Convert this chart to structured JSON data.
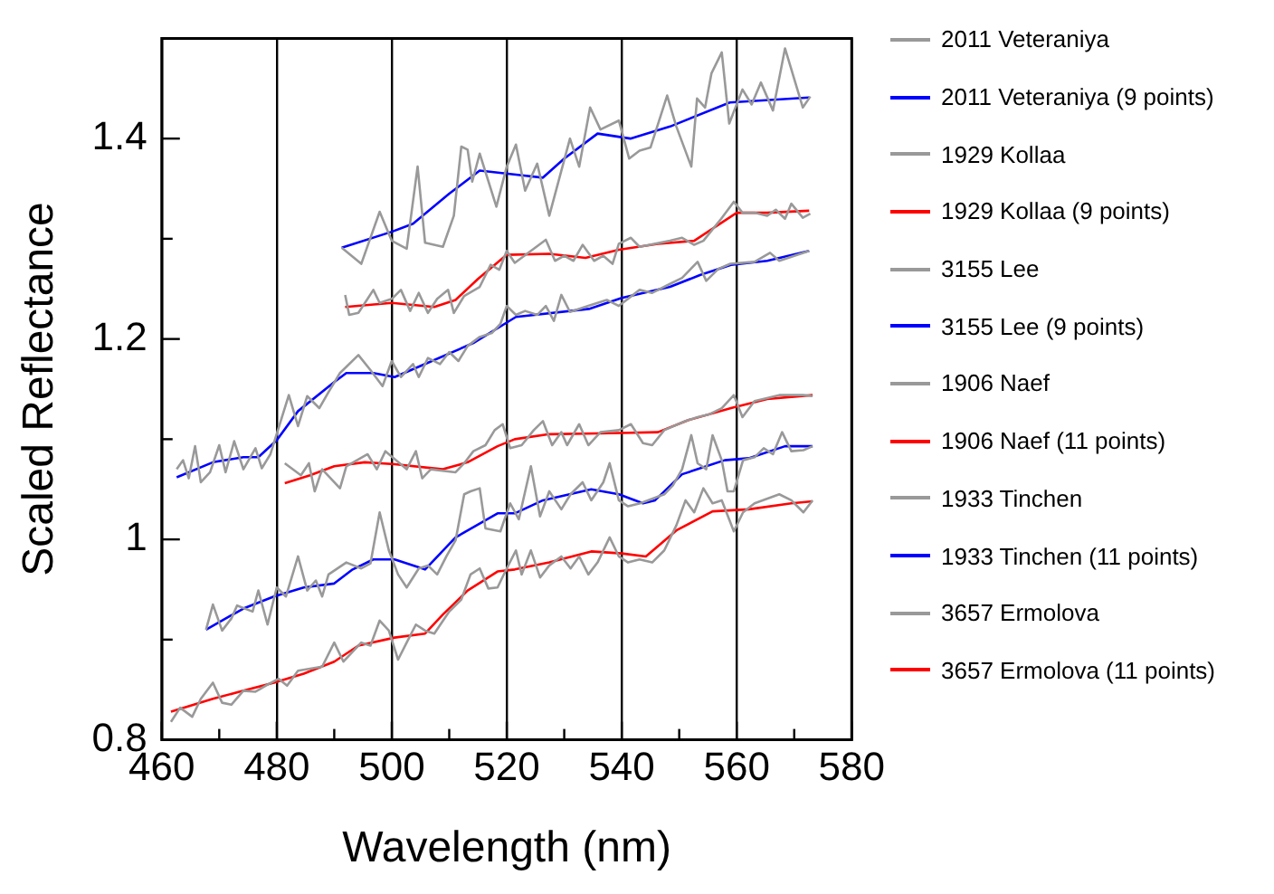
{
  "chart_data": {
    "type": "line",
    "xlabel": "Wavelength (nm)",
    "ylabel": "Scaled Reflectance",
    "xlim": [
      460,
      580
    ],
    "ylim": [
      0.8,
      1.5
    ],
    "xticks": [
      460,
      {
        "value": 470,
        "label": null
      },
      480,
      {
        "value": 490,
        "label": null
      },
      500,
      {
        "value": 510,
        "label": null
      },
      520,
      {
        "value": 530,
        "label": null
      },
      540,
      {
        "value": 550,
        "label": null
      },
      560,
      {
        "value": 570,
        "label": null
      },
      580
    ],
    "yticks": [
      0.8,
      {
        "value": 0.9,
        "label": null
      },
      1,
      {
        "value": 1.1,
        "label": null
      },
      1.2,
      {
        "value": 1.3,
        "label": null
      },
      1.4
    ],
    "grid": "x",
    "legend": "right",
    "marker": "none",
    "line_style": "solid",
    "series": [
      {
        "name": "2011 Veteraniya",
        "color": "#999999",
        "x": [
          491.3,
          494.7,
          497.9,
          500,
          502.6,
          504.5,
          505.8,
          508.9,
          510.8,
          512.1,
          513.2,
          514,
          515.3,
          518.2,
          520,
          521.6,
          523.2,
          525.3,
          527.4,
          531,
          532.6,
          534.5,
          536.3,
          539.5,
          541.3,
          543.1,
          545,
          547.9,
          549.5,
          552.1,
          553.1,
          554.5,
          555.6,
          557.4,
          558.7,
          561,
          562.6,
          564.2,
          566.3,
          568.4,
          571.5,
          572.8
        ],
        "values": [
          1.291,
          1.275,
          1.327,
          1.298,
          1.29,
          1.372,
          1.296,
          1.292,
          1.323,
          1.392,
          1.389,
          1.357,
          1.385,
          1.332,
          1.372,
          1.394,
          1.348,
          1.375,
          1.323,
          1.4,
          1.372,
          1.431,
          1.409,
          1.418,
          1.38,
          1.388,
          1.391,
          1.443,
          1.412,
          1.372,
          1.44,
          1.431,
          1.465,
          1.486,
          1.415,
          1.449,
          1.434,
          1.456,
          1.428,
          1.49,
          1.431,
          1.442
        ]
      },
      {
        "name": "2011 Veteraniya (9 points)",
        "color": "#0000ff",
        "x": [
          491.3,
          500,
          503.7,
          510,
          515.3,
          521.6,
          526.3,
          530,
          535.8,
          541.5,
          548.4,
          558.8,
          572.6
        ],
        "values": [
          1.291,
          1.307,
          1.315,
          1.345,
          1.368,
          1.364,
          1.361,
          1.38,
          1.405,
          1.4,
          1.412,
          1.436,
          1.441
        ]
      },
      {
        "name": "1929 Kollaa",
        "color": "#999999",
        "x": [
          491.9,
          492.6,
          494.2,
          495.8,
          496.8,
          497.9,
          500,
          501.6,
          503.2,
          504.7,
          506.3,
          507.9,
          509.8,
          510.8,
          512.6,
          515.3,
          517.2,
          518.7,
          520,
          521.4,
          526.8,
          528.4,
          530,
          531.6,
          533.2,
          535.2,
          536.8,
          538.4,
          539.5,
          541.6,
          543.1,
          548.4,
          550.5,
          552.6,
          554.2,
          557.3,
          559.5,
          561,
          563.1,
          565.3,
          566.8,
          568.4,
          569.5,
          571.5,
          572.8
        ],
        "values": [
          1.244,
          1.224,
          1.226,
          1.24,
          1.249,
          1.236,
          1.24,
          1.249,
          1.228,
          1.246,
          1.226,
          1.24,
          1.249,
          1.226,
          1.243,
          1.252,
          1.274,
          1.269,
          1.288,
          1.276,
          1.299,
          1.278,
          1.283,
          1.278,
          1.294,
          1.278,
          1.283,
          1.275,
          1.295,
          1.301,
          1.292,
          1.298,
          1.301,
          1.294,
          1.298,
          1.32,
          1.337,
          1.326,
          1.326,
          1.323,
          1.329,
          1.32,
          1.335,
          1.321,
          1.325
        ]
      },
      {
        "name": "1929 Kollaa (9 points)",
        "color": "#ff0000",
        "x": [
          491.9,
          500,
          507.4,
          511.1,
          515,
          520,
          527.4,
          533.7,
          539.5,
          546.3,
          552.6,
          560,
          565.3,
          572.6
        ],
        "values": [
          1.232,
          1.236,
          1.232,
          1.239,
          1.26,
          1.284,
          1.285,
          1.281,
          1.289,
          1.295,
          1.298,
          1.326,
          1.326,
          1.328
        ]
      },
      {
        "name": "3155 Lee",
        "color": "#999999",
        "x": [
          462.6,
          463.7,
          464.7,
          465.8,
          466.8,
          468.4,
          470,
          471.1,
          472.6,
          474.2,
          476.3,
          477.4,
          478.9,
          482.1,
          483.7,
          485.3,
          487.4,
          489,
          491,
          494.2,
          496.3,
          498.4,
          500,
          501.6,
          503.7,
          504.7,
          506.3,
          508.4,
          510,
          511.6,
          513.2,
          515.3,
          517.4,
          518.9,
          520,
          521.6,
          523.2,
          525.3,
          526.8,
          528.2,
          529.5,
          531,
          534.2,
          537.4,
          539.5,
          543.1,
          545.3,
          548.4,
          550.5,
          553.2,
          554.7,
          556.8,
          558.9,
          563.1,
          565.8,
          567.4,
          570,
          572.6
        ],
        "values": [
          1.07,
          1.079,
          1.061,
          1.093,
          1.057,
          1.067,
          1.094,
          1.067,
          1.098,
          1.07,
          1.091,
          1.071,
          1.085,
          1.144,
          1.113,
          1.143,
          1.131,
          1.147,
          1.166,
          1.184,
          1.169,
          1.153,
          1.178,
          1.162,
          1.175,
          1.162,
          1.181,
          1.175,
          1.187,
          1.178,
          1.193,
          1.202,
          1.206,
          1.215,
          1.233,
          1.224,
          1.228,
          1.224,
          1.233,
          1.218,
          1.244,
          1.227,
          1.233,
          1.239,
          1.233,
          1.249,
          1.246,
          1.255,
          1.261,
          1.277,
          1.258,
          1.27,
          1.275,
          1.277,
          1.286,
          1.278,
          1.283,
          1.288
        ]
      },
      {
        "name": "3155 Lee (9 points)",
        "color": "#0000ff",
        "x": [
          462.6,
          468.9,
          474.2,
          476.8,
          480,
          483.7,
          490,
          492.1,
          496.8,
          500.5,
          505.8,
          514.2,
          521.6,
          534.3,
          540,
          548.4,
          553.7,
          559,
          565.3,
          572.6
        ],
        "values": [
          1.062,
          1.077,
          1.082,
          1.082,
          1.099,
          1.128,
          1.157,
          1.166,
          1.166,
          1.162,
          1.175,
          1.196,
          1.222,
          1.23,
          1.241,
          1.252,
          1.264,
          1.274,
          1.278,
          1.288
        ]
      },
      {
        "name": "1906 Naef",
        "color": "#999999",
        "x": [
          481.4,
          484.2,
          485.6,
          486.6,
          487.9,
          491,
          492.1,
          495.8,
          497.4,
          498.9,
          502.6,
          504.2,
          505.3,
          506.8,
          511.1,
          512.6,
          514.2,
          516.3,
          517.9,
          519.3,
          520.6,
          522.6,
          524.7,
          526.3,
          527.9,
          529.5,
          530.5,
          532.6,
          534.2,
          536.3,
          539.5,
          541.6,
          543.7,
          545.3,
          547.4,
          551,
          553.2,
          555.3,
          557.4,
          559.5,
          561,
          563.1,
          567.4,
          571.6,
          573.2
        ],
        "values": [
          1.076,
          1.064,
          1.076,
          1.048,
          1.07,
          1.051,
          1.073,
          1.085,
          1.07,
          1.088,
          1.07,
          1.088,
          1.061,
          1.07,
          1.067,
          1.076,
          1.088,
          1.094,
          1.109,
          1.115,
          1.091,
          1.094,
          1.109,
          1.118,
          1.094,
          1.107,
          1.094,
          1.115,
          1.094,
          1.107,
          1.109,
          1.115,
          1.096,
          1.094,
          1.109,
          1.118,
          1.122,
          1.125,
          1.131,
          1.144,
          1.122,
          1.138,
          1.144,
          1.144,
          1.143
        ]
      },
      {
        "name": "1906 Naef (11 points)",
        "color": "#ff0000",
        "x": [
          481.4,
          485.8,
          490,
          495.3,
          500.5,
          508.9,
          513.2,
          518.4,
          521.4,
          527.4,
          537.9,
          546.3,
          551.6,
          559,
          565.3,
          573.2
        ],
        "values": [
          1.056,
          1.064,
          1.073,
          1.077,
          1.075,
          1.07,
          1.077,
          1.093,
          1.1,
          1.105,
          1.106,
          1.107,
          1.119,
          1.131,
          1.14,
          1.144
        ]
      },
      {
        "name": "1933 Tinchen",
        "color": "#999999",
        "x": [
          467.7,
          468.9,
          470.5,
          472.1,
          473.1,
          475.8,
          476.8,
          478.4,
          480,
          481.6,
          482.6,
          483.7,
          485.3,
          486.8,
          487.9,
          489,
          492.1,
          494.7,
          496.3,
          497.9,
          499.5,
          501.1,
          502.6,
          504.7,
          506.3,
          507.9,
          509.5,
          511.1,
          512.6,
          513.7,
          515.3,
          516.3,
          518.9,
          520.6,
          522.1,
          524.2,
          525.8,
          527.4,
          529.5,
          531.1,
          533.2,
          534.7,
          536.8,
          537.9,
          539.5,
          541.1,
          543.2,
          547.4,
          548.9,
          550.5,
          552.1,
          553.2,
          554.7,
          555.8,
          557.4,
          558.4,
          559.5,
          561.1,
          563.1,
          564.7,
          566.3,
          567.9,
          569.5,
          571.6,
          573.2
        ],
        "values": [
          0.91,
          0.935,
          0.909,
          0.921,
          0.934,
          0.928,
          0.949,
          0.915,
          0.952,
          0.943,
          0.962,
          0.983,
          0.949,
          0.959,
          0.943,
          0.965,
          0.977,
          0.971,
          0.976,
          1.027,
          0.989,
          0.965,
          0.952,
          0.971,
          0.974,
          0.965,
          0.983,
          0.999,
          1.045,
          1.048,
          1.051,
          1.011,
          1.008,
          1.036,
          1.02,
          1.073,
          1.023,
          1.048,
          1.03,
          1.045,
          1.057,
          1.039,
          1.057,
          1.076,
          1.039,
          1.033,
          1.036,
          1.045,
          1.054,
          1.07,
          1.104,
          1.076,
          1.07,
          1.104,
          1.079,
          1.048,
          1.048,
          1.079,
          1.082,
          1.091,
          1.085,
          1.107,
          1.088,
          1.089,
          1.093
        ]
      },
      {
        "name": "1933 Tinchen (11 points)",
        "color": "#0000ff",
        "x": [
          467.7,
          474.2,
          479.5,
          484.7,
          490,
          493.2,
          496.8,
          500.5,
          505.8,
          511.1,
          518.4,
          521.4,
          526.3,
          534.7,
          539.5,
          543.7,
          545.8,
          550.5,
          557.9,
          562.1,
          568.4,
          573.2
        ],
        "values": [
          0.91,
          0.931,
          0.943,
          0.952,
          0.956,
          0.97,
          0.98,
          0.98,
          0.97,
          1.002,
          1.026,
          1.026,
          1.039,
          1.05,
          1.045,
          1.036,
          1.039,
          1.065,
          1.079,
          1.081,
          1.093,
          1.093
        ]
      },
      {
        "name": "3657 Ermolova",
        "color": "#999999",
        "x": [
          461.6,
          463.2,
          465.3,
          466.8,
          468.9,
          470.5,
          472.1,
          474.2,
          476.3,
          478.4,
          480.3,
          481.8,
          483.7,
          487.9,
          490,
          491.6,
          494.7,
          496.3,
          497.9,
          499.5,
          501.1,
          502.6,
          504.2,
          505.8,
          507.4,
          510,
          512.1,
          513.7,
          515.3,
          516.8,
          518.4,
          520,
          521.6,
          522.6,
          524.2,
          525.8,
          527.4,
          529.5,
          531.1,
          532.6,
          534.2,
          535.8,
          537.9,
          539.5,
          541.1,
          543.1,
          545.3,
          547.4,
          549.5,
          551.1,
          552.6,
          554.2,
          555.8,
          557.4,
          559.5,
          561.1,
          563.1,
          567.4,
          569.5,
          571.6,
          573.2
        ],
        "values": [
          0.818,
          0.832,
          0.823,
          0.841,
          0.857,
          0.837,
          0.835,
          0.849,
          0.848,
          0.855,
          0.861,
          0.854,
          0.869,
          0.873,
          0.897,
          0.878,
          0.897,
          0.894,
          0.919,
          0.909,
          0.88,
          0.897,
          0.915,
          0.909,
          0.906,
          0.928,
          0.94,
          0.965,
          0.971,
          0.951,
          0.952,
          0.971,
          0.989,
          0.965,
          0.989,
          0.962,
          0.974,
          0.983,
          0.971,
          0.983,
          0.965,
          0.977,
          1.002,
          0.983,
          0.977,
          0.98,
          0.977,
          0.989,
          1.014,
          1.039,
          1.027,
          1.051,
          1.036,
          1.039,
          1.008,
          1.027,
          1.036,
          1.045,
          1.039,
          1.027,
          1.039
        ]
      },
      {
        "name": "3657 Ermolova (11 points)",
        "color": "#ff0000",
        "x": [
          461.6,
          468.9,
          474.2,
          479.5,
          484.7,
          490,
          494.2,
          500.5,
          505.8,
          508.9,
          513.2,
          518.4,
          521.4,
          527.4,
          534.7,
          540,
          544.2,
          549.5,
          555.8,
          562.1,
          569.5,
          573.2
        ],
        "values": [
          0.828,
          0.841,
          0.849,
          0.857,
          0.866,
          0.878,
          0.894,
          0.902,
          0.906,
          0.925,
          0.949,
          0.968,
          0.97,
          0.977,
          0.988,
          0.986,
          0.983,
          1.009,
          1.028,
          1.03,
          1.036,
          1.038
        ]
      }
    ]
  }
}
